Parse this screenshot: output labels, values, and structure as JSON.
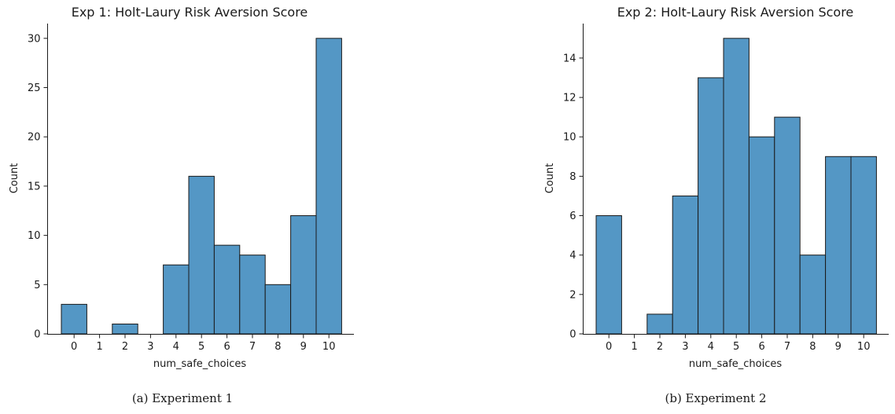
{
  "colors": {
    "bar": "#5497c5",
    "edge": "#1a1a1a"
  },
  "chart_data": [
    {
      "type": "bar",
      "title": "Exp 1: Holt-Laury Risk Aversion Score",
      "xlabel": "num_safe_choices",
      "ylabel": "Count",
      "caption": "(a) Experiment 1",
      "categories": [
        "0",
        "1",
        "2",
        "3",
        "4",
        "5",
        "6",
        "7",
        "8",
        "9",
        "10"
      ],
      "values": [
        3,
        0,
        1,
        0,
        7,
        16,
        9,
        8,
        5,
        12,
        30
      ],
      "yticks": [
        0,
        5,
        10,
        15,
        20,
        25,
        30
      ],
      "ylim": [
        0,
        31.5
      ],
      "grid": false
    },
    {
      "type": "bar",
      "title": "Exp 2: Holt-Laury Risk Aversion Score",
      "xlabel": "num_safe_choices",
      "ylabel": "Count",
      "caption": "(b) Experiment 2",
      "categories": [
        "0",
        "1",
        "2",
        "3",
        "4",
        "5",
        "6",
        "7",
        "8",
        "9",
        "10"
      ],
      "values": [
        6,
        0,
        1,
        7,
        13,
        15,
        10,
        11,
        4,
        9,
        9
      ],
      "yticks": [
        0,
        2,
        4,
        6,
        8,
        10,
        12,
        14
      ],
      "ylim": [
        0,
        15.75
      ],
      "grid": false
    }
  ]
}
